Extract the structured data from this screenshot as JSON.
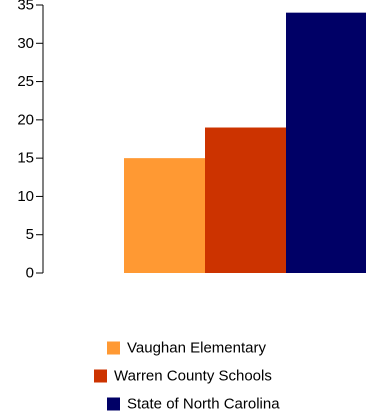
{
  "chart_data": {
    "type": "bar",
    "title": "",
    "xlabel": "",
    "ylabel": "",
    "ylim": [
      0,
      35
    ],
    "yticks": [
      0,
      5,
      10,
      15,
      20,
      25,
      30,
      35
    ],
    "grid": false,
    "legend_position": "bottom",
    "categories": [
      ""
    ],
    "series": [
      {
        "name": "Vaughan Elementary",
        "values": [
          15
        ],
        "color": "#ff9933"
      },
      {
        "name": "Warren County Schools",
        "values": [
          19
        ],
        "color": "#cc3300"
      },
      {
        "name": "State of North Carolina",
        "values": [
          34
        ],
        "color": "#000066"
      }
    ]
  }
}
